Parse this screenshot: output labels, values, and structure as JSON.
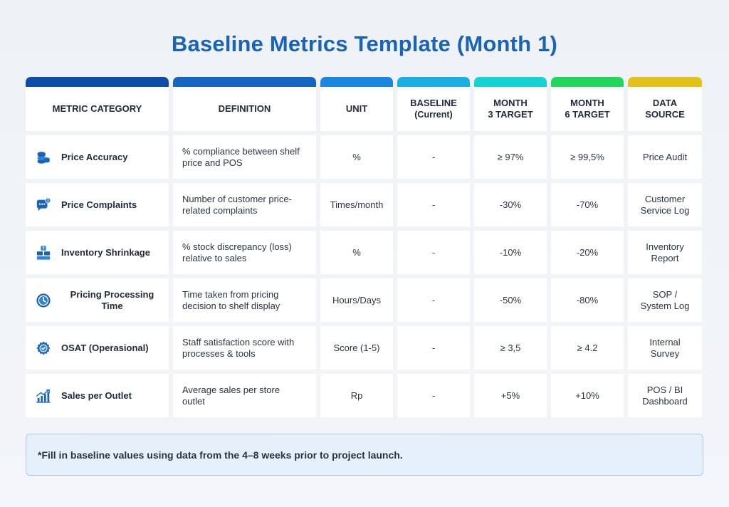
{
  "title": "Baseline Metrics Template (Month 1)",
  "header": [
    {
      "label": "METRIC CATEGORY",
      "sub": "",
      "color": "#0f4ca8"
    },
    {
      "label": "DEFINITION",
      "sub": "",
      "color": "#1566c0"
    },
    {
      "label": "UNIT",
      "sub": "",
      "color": "#1a86e0"
    },
    {
      "label": "BASELINE",
      "sub": "(Current)",
      "color": "#1aaee4"
    },
    {
      "label": "MONTH\n3 TARGET",
      "sub": "",
      "color": "#16d2d2"
    },
    {
      "label": "MONTH\n6 TARGET",
      "sub": "",
      "color": "#22d65c"
    },
    {
      "label": "DATA\nSOURCE",
      "sub": "",
      "color": "#e2c21a"
    }
  ],
  "rows": [
    {
      "icon": "coins-stack-icon",
      "category": "Price Accuracy",
      "definition": "% compliance between shelf price and POS",
      "unit": "%",
      "baseline": "-",
      "month3": "≥ 97%",
      "month6": "≥ 99,5%",
      "source": "Price Audit"
    },
    {
      "icon": "chat-alert-icon",
      "category": "Price Complaints",
      "definition": "Number of customer price-related complaints",
      "unit": "Times/month",
      "baseline": "-",
      "month3": "-30%",
      "month6": "-70%",
      "source": "Customer\nService Log"
    },
    {
      "icon": "inventory-boxes-icon",
      "category": "Inventory Shrinkage",
      "definition": "% stock discrepancy (loss) relative to sales",
      "unit": "%",
      "baseline": "-",
      "month3": "-10%",
      "month6": "-20%",
      "source": "Inventory\nReport"
    },
    {
      "icon": "clock-icon",
      "category": "Pricing Processing Time",
      "definition": "Time taken from pricing decision to shelf display",
      "unit": "Hours/Days",
      "baseline": "-",
      "month3": "-50%",
      "month6": "-80%",
      "source": "SOP /\nSystem Log"
    },
    {
      "icon": "gear-check-icon",
      "category": "OSAT (Operasional)",
      "definition": "Staff satisfaction score with processes & tools",
      "unit": "Score (1-5)",
      "baseline": "-",
      "month3": "≥  3,5",
      "month6": "≥  4.2",
      "source": "Internal\nSurvey"
    },
    {
      "icon": "growth-chart-icon",
      "category": "Sales per Outlet",
      "definition": "Average sales per store outlet",
      "unit": "Rp",
      "baseline": "-",
      "month3": "+5%",
      "month6": "+10%",
      "source": "POS / BI\nDashboard"
    }
  ],
  "note": "*Fill in baseline values using data from the 4–8 weeks prior to project launch."
}
